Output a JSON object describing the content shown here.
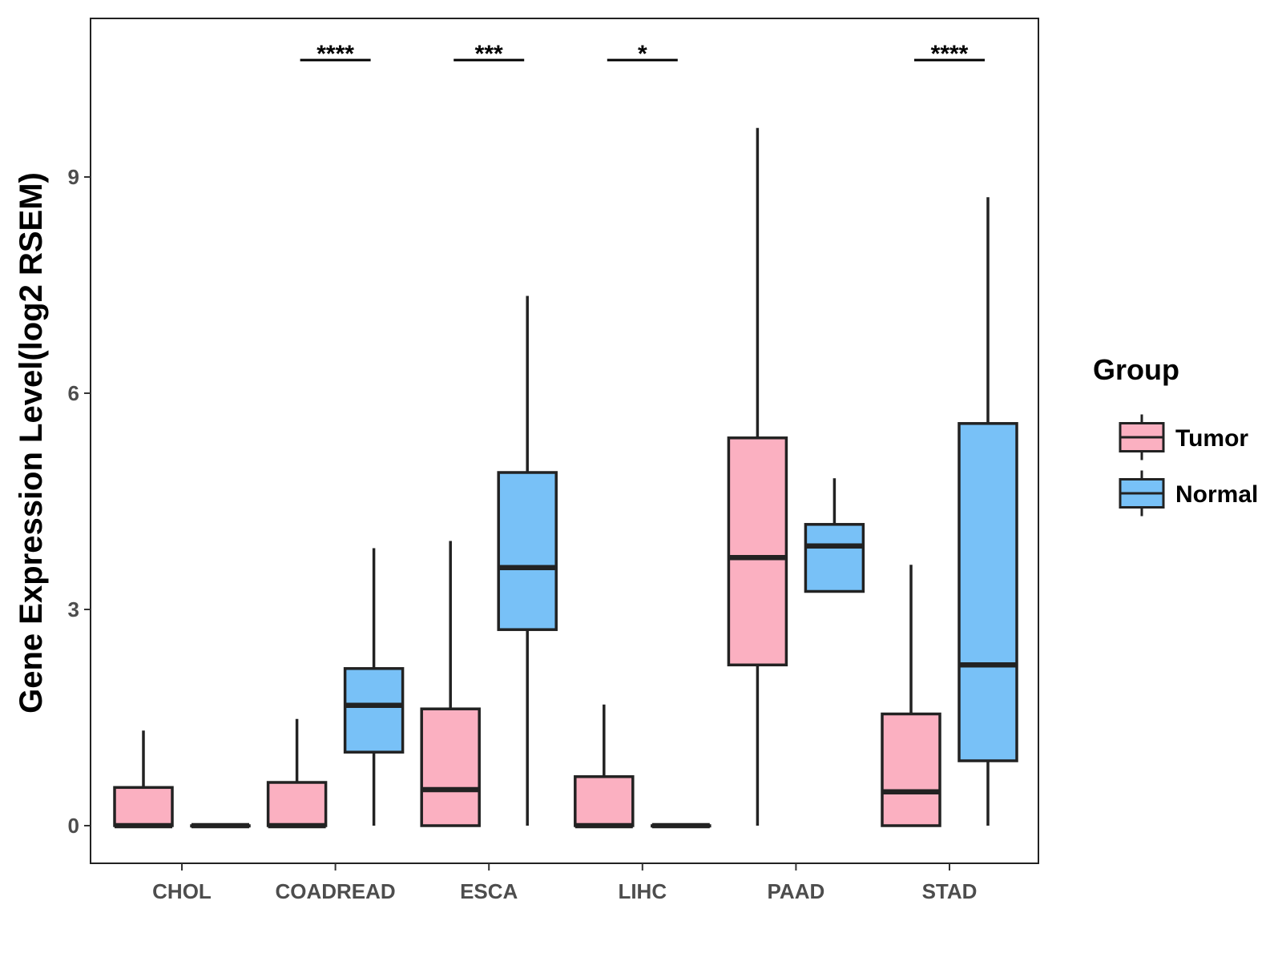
{
  "colors": {
    "tumor": "#FBB0C1",
    "normal": "#78C1F7",
    "stroke": "#222222"
  },
  "chart_data": {
    "type": "boxplot",
    "title": "",
    "xlabel": "",
    "ylabel": "Gene Expression Level(log2 RSEM)",
    "ylim": [
      -0.5,
      11.3
    ],
    "yticks": [
      0,
      3,
      6,
      9
    ],
    "grid": false,
    "legend": {
      "title": "Group",
      "position": "right",
      "entries": [
        "Tumor",
        "Normal"
      ]
    },
    "categories": [
      "CHOL",
      "COADREAD",
      "ESCA",
      "LIHC",
      "PAAD",
      "STAD"
    ],
    "series": [
      {
        "name": "Tumor",
        "boxes": [
          {
            "min": 0,
            "q1": 0,
            "median": 0,
            "q3": 0.53,
            "max": 1.32
          },
          {
            "min": 0,
            "q1": 0,
            "median": 0,
            "q3": 0.6,
            "max": 1.48
          },
          {
            "min": 0,
            "q1": 0,
            "median": 0.5,
            "q3": 1.62,
            "max": 3.95
          },
          {
            "min": 0,
            "q1": 0,
            "median": 0,
            "q3": 0.68,
            "max": 1.68
          },
          {
            "min": 0,
            "q1": 2.23,
            "median": 3.72,
            "q3": 5.38,
            "max": 9.68
          },
          {
            "min": 0,
            "q1": 0,
            "median": 0.47,
            "q3": 1.55,
            "max": 3.62
          }
        ]
      },
      {
        "name": "Normal",
        "boxes": [
          {
            "min": 0,
            "q1": 0,
            "median": 0,
            "q3": 0,
            "max": 0
          },
          {
            "min": 0,
            "q1": 1.02,
            "median": 1.67,
            "q3": 2.18,
            "max": 3.85
          },
          {
            "min": 0,
            "q1": 2.72,
            "median": 3.58,
            "q3": 4.9,
            "max": 7.35
          },
          {
            "min": 0,
            "q1": 0,
            "median": 0,
            "q3": 0,
            "max": 0
          },
          {
            "min": 3.25,
            "q1": 3.25,
            "median": 3.88,
            "q3": 4.18,
            "max": 4.82
          },
          {
            "min": 0,
            "q1": 0.9,
            "median": 2.23,
            "q3": 5.58,
            "max": 8.72
          }
        ]
      }
    ],
    "significance": [
      {
        "category": "COADREAD",
        "label": "****"
      },
      {
        "category": "ESCA",
        "label": "***"
      },
      {
        "category": "LIHC",
        "label": "*"
      },
      {
        "category": "STAD",
        "label": "****"
      }
    ]
  }
}
